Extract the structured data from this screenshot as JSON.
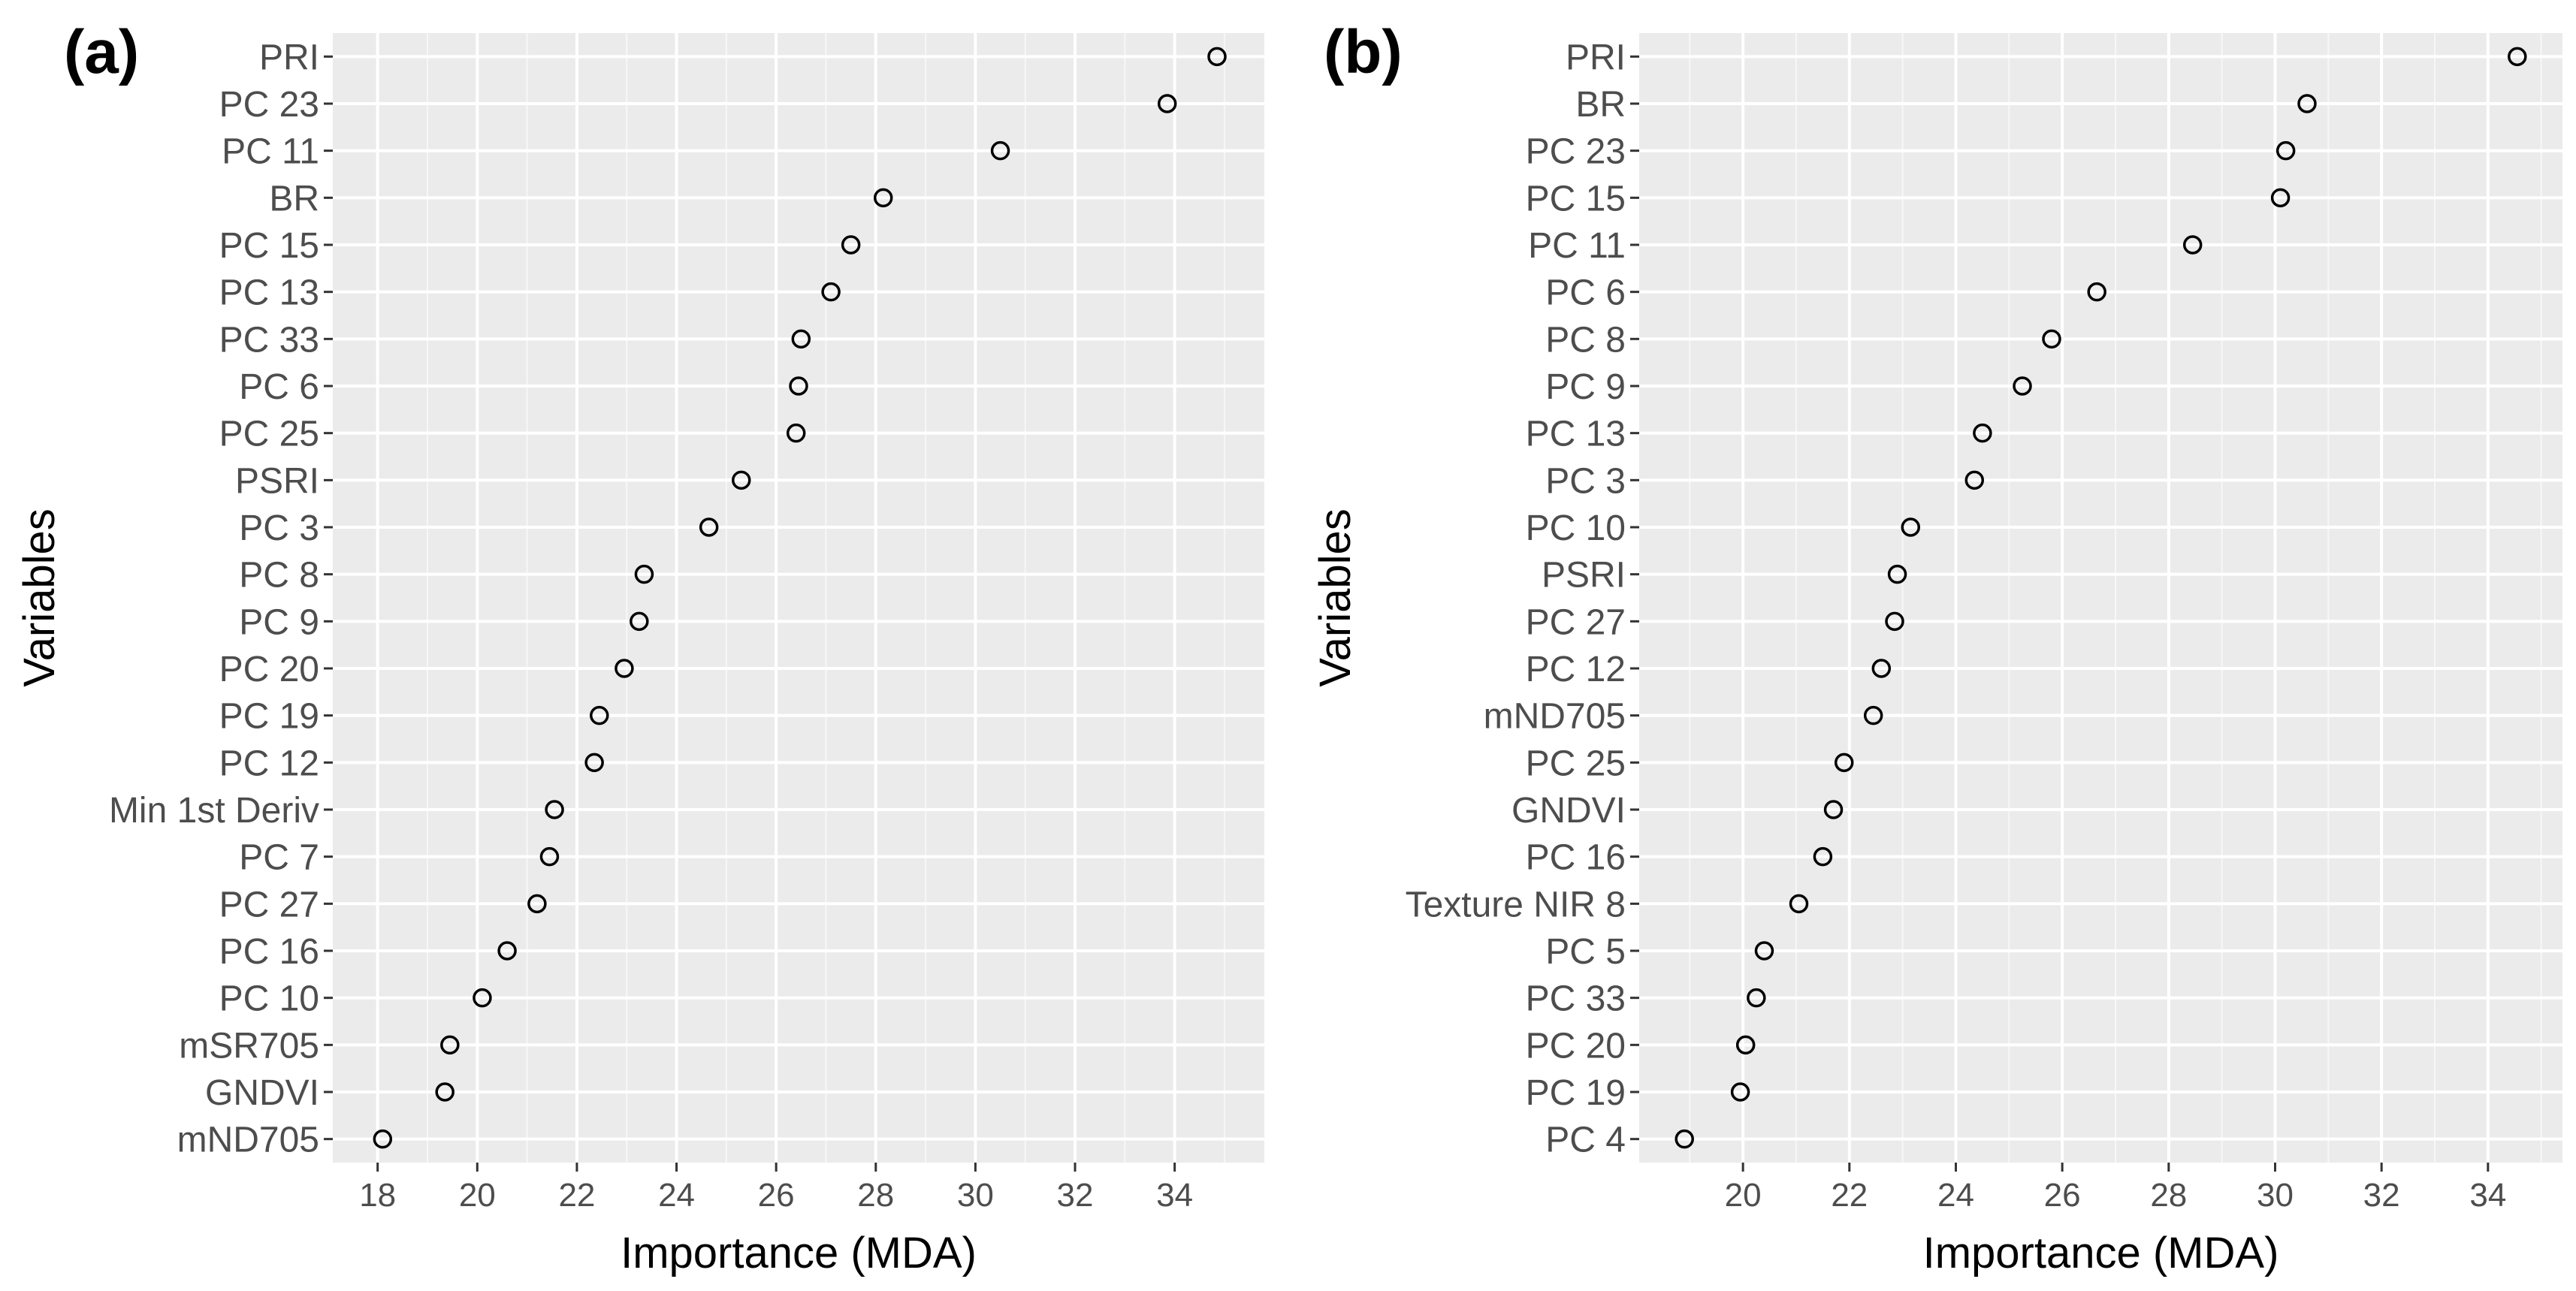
{
  "chart_data": [
    {
      "type": "scatter",
      "panel_label": "(a)",
      "xlabel": "Importance (MDA)",
      "ylabel": "Variables",
      "xlim": [
        17.1,
        35.8
      ],
      "x_ticks": [
        18,
        20,
        22,
        24,
        26,
        28,
        30,
        32,
        34
      ],
      "grid": true,
      "points": [
        {
          "label": "PRI",
          "value": 34.85
        },
        {
          "label": "PC 23",
          "value": 33.85
        },
        {
          "label": "PC 11",
          "value": 30.5
        },
        {
          "label": "BR",
          "value": 28.15
        },
        {
          "label": "PC 15",
          "value": 27.5
        },
        {
          "label": "PC 13",
          "value": 27.1
        },
        {
          "label": "PC 33",
          "value": 26.5
        },
        {
          "label": "PC 6",
          "value": 26.45
        },
        {
          "label": "PC 25",
          "value": 26.4
        },
        {
          "label": "PSRI",
          "value": 25.3
        },
        {
          "label": "PC 3",
          "value": 24.65
        },
        {
          "label": "PC 8",
          "value": 23.35
        },
        {
          "label": "PC 9",
          "value": 23.25
        },
        {
          "label": "PC 20",
          "value": 22.95
        },
        {
          "label": "PC 19",
          "value": 22.45
        },
        {
          "label": "PC 12",
          "value": 22.35
        },
        {
          "label": "Min 1st Deriv",
          "value": 21.55
        },
        {
          "label": "PC 7",
          "value": 21.45
        },
        {
          "label": "PC 27",
          "value": 21.2
        },
        {
          "label": "PC 16",
          "value": 20.6
        },
        {
          "label": "PC 10",
          "value": 20.1
        },
        {
          "label": "mSR705",
          "value": 19.45
        },
        {
          "label": "GNDVI",
          "value": 19.35
        },
        {
          "label": "mND705",
          "value": 18.1
        }
      ]
    },
    {
      "type": "scatter",
      "panel_label": "(b)",
      "xlabel": "Importance (MDA)",
      "ylabel": "Variables",
      "xlim": [
        18.05,
        35.4
      ],
      "x_ticks": [
        20,
        22,
        24,
        26,
        28,
        30,
        32,
        34
      ],
      "grid": true,
      "points": [
        {
          "label": "PRI",
          "value": 34.55
        },
        {
          "label": "BR",
          "value": 30.6
        },
        {
          "label": "PC 23",
          "value": 30.2
        },
        {
          "label": "PC 15",
          "value": 30.1
        },
        {
          "label": "PC 11",
          "value": 28.45
        },
        {
          "label": "PC 6",
          "value": 26.65
        },
        {
          "label": "PC 8",
          "value": 25.8
        },
        {
          "label": "PC 9",
          "value": 25.25
        },
        {
          "label": "PC 13",
          "value": 24.5
        },
        {
          "label": "PC 3",
          "value": 24.35
        },
        {
          "label": "PC 10",
          "value": 23.15
        },
        {
          "label": "PSRI",
          "value": 22.9
        },
        {
          "label": "PC 27",
          "value": 22.85
        },
        {
          "label": "PC 12",
          "value": 22.6
        },
        {
          "label": "mND705",
          "value": 22.45
        },
        {
          "label": "PC 25",
          "value": 21.9
        },
        {
          "label": "GNDVI",
          "value": 21.7
        },
        {
          "label": "PC 16",
          "value": 21.5
        },
        {
          "label": "Texture NIR 8",
          "value": 21.05
        },
        {
          "label": "PC 5",
          "value": 20.4
        },
        {
          "label": "PC 33",
          "value": 20.25
        },
        {
          "label": "PC 20",
          "value": 20.05
        },
        {
          "label": "PC 19",
          "value": 19.95
        },
        {
          "label": "PC 4",
          "value": 18.9
        }
      ]
    }
  ]
}
